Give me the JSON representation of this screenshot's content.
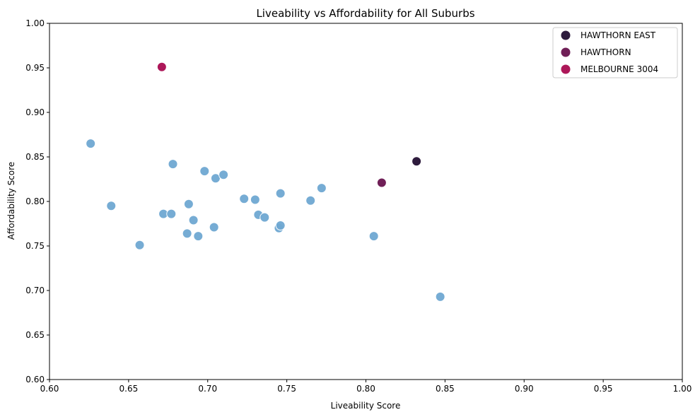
{
  "chart_data": {
    "type": "scatter",
    "title": "Liveability vs Affordability for All Suburbs",
    "xlabel": "Liveability Score",
    "ylabel": "Affordability Score",
    "xlim": [
      0.6,
      1.0
    ],
    "ylim": [
      0.6,
      1.0
    ],
    "x_ticks": [
      "0.60",
      "0.65",
      "0.70",
      "0.75",
      "0.80",
      "0.85",
      "0.90",
      "0.95",
      "1.00"
    ],
    "y_ticks": [
      "0.60",
      "0.65",
      "0.70",
      "0.75",
      "0.80",
      "0.85",
      "0.90",
      "0.95",
      "1.00"
    ],
    "grid": false,
    "legend_position": "top-right",
    "other_suburbs": {
      "color": "#6fa8d2",
      "points": [
        [
          0.626,
          0.865
        ],
        [
          0.639,
          0.795
        ],
        [
          0.657,
          0.751
        ],
        [
          0.672,
          0.786
        ],
        [
          0.677,
          0.786
        ],
        [
          0.678,
          0.842
        ],
        [
          0.687,
          0.764
        ],
        [
          0.688,
          0.797
        ],
        [
          0.691,
          0.779
        ],
        [
          0.694,
          0.761
        ],
        [
          0.698,
          0.834
        ],
        [
          0.704,
          0.771
        ],
        [
          0.705,
          0.826
        ],
        [
          0.71,
          0.83
        ],
        [
          0.723,
          0.803
        ],
        [
          0.73,
          0.802
        ],
        [
          0.732,
          0.785
        ],
        [
          0.736,
          0.782
        ],
        [
          0.745,
          0.77
        ],
        [
          0.746,
          0.773
        ],
        [
          0.746,
          0.809
        ],
        [
          0.765,
          0.801
        ],
        [
          0.772,
          0.815
        ],
        [
          0.805,
          0.761
        ],
        [
          0.847,
          0.693
        ]
      ]
    },
    "series": [
      {
        "name": "HAWTHORN EAST",
        "color": "#2e1b3d",
        "points": [
          [
            0.832,
            0.845
          ]
        ]
      },
      {
        "name": "HAWTHORN",
        "color": "#701f57",
        "points": [
          [
            0.81,
            0.821
          ]
        ]
      },
      {
        "name": "MELBOURNE 3004",
        "color": "#ad1759",
        "points": [
          [
            0.671,
            0.951
          ]
        ]
      }
    ]
  }
}
